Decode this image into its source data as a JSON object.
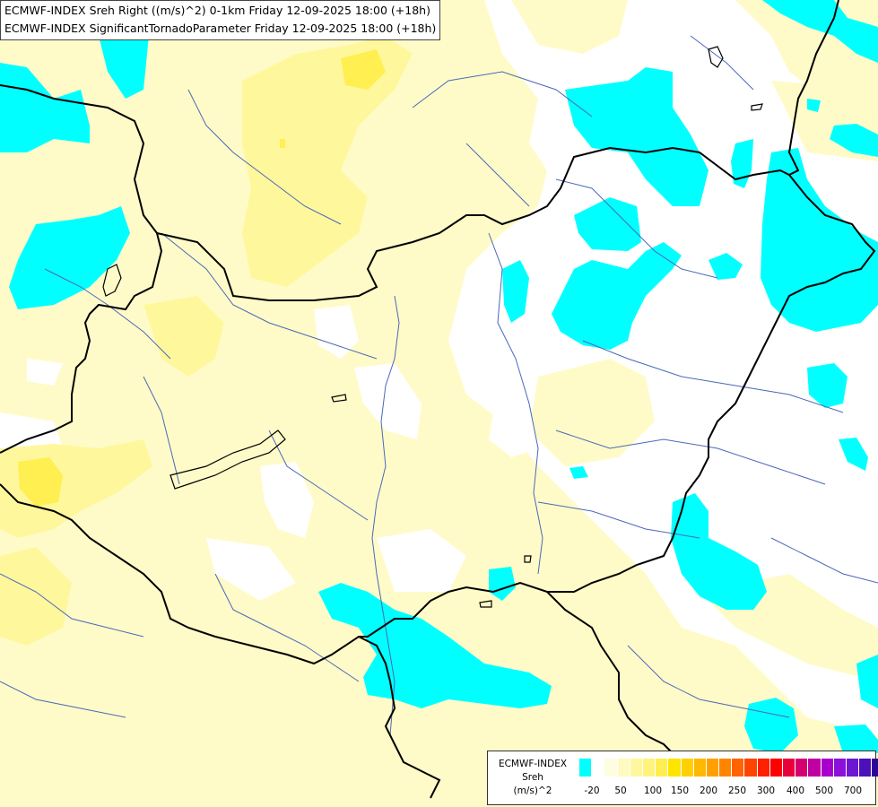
{
  "title": {
    "line1": "ECMWF-INDEX Sreh Right ((m/s)^2) 0-1km Friday 12-09-2025 18:00 (+18h)",
    "line2": "ECMWF-INDEX SignificantTornadoParameter Friday 12-09-2025 18:00 (+18h)"
  },
  "legend": {
    "title_line1": "ECMWF-INDEX",
    "title_line2": "Sreh",
    "title_line3": "(m/s)^2",
    "ticks": [
      "-20",
      "50",
      "100",
      "150",
      "200",
      "250",
      "300",
      "400",
      "500",
      "700"
    ],
    "colors": [
      "#00ffff",
      "#ffffff",
      "#fffde0",
      "#fffac0",
      "#fff7a0",
      "#fff37c",
      "#ffee50",
      "#ffe400",
      "#ffd000",
      "#ffb800",
      "#ffa000",
      "#ff8400",
      "#ff6400",
      "#ff4400",
      "#ff2000",
      "#ff0000",
      "#e8003c",
      "#d40070",
      "#c000a0",
      "#a800cc",
      "#8c10d8",
      "#6c18d0",
      "#4c10b8",
      "#2c0898",
      "#100070"
    ]
  },
  "map": {
    "cyan": "#00ffff",
    "pale_yellow": "#fffbc8",
    "yellow": "#fff79c",
    "deep_yellow": "#ffef50",
    "border_color": "#000000",
    "river_color": "#4a68b8"
  }
}
